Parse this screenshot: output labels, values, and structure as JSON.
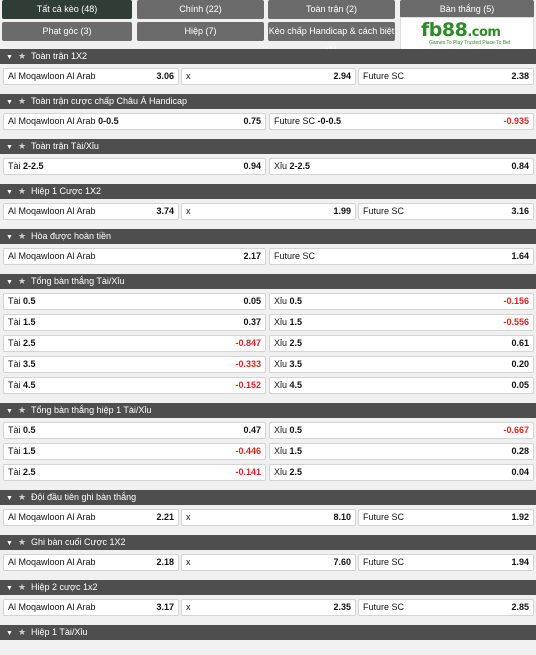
{
  "tabs": [
    {
      "label": "Tất cả kèo (48)"
    },
    {
      "label": "Chính (22)"
    },
    {
      "label": "Toàn trận (2)"
    },
    {
      "label": "Bàn thắng (5)"
    },
    {
      "label": "Phạt góc (3)"
    },
    {
      "label": "Hiệp (7)"
    },
    {
      "label": "Kèo chấp Handicap & cách biệt (1)"
    }
  ],
  "logo": {
    "brand": "fb88",
    "suffix": ".com",
    "tagline": "Games To Play  Trusted Place To Bet"
  },
  "icons": {
    "collapse": "triangle-down-icon",
    "favorite": "star-icon"
  },
  "colors": {
    "header_bg": "#4e4e4e",
    "tab_active": "#2f3d34",
    "tab": "#6b6b6b",
    "negative": "#e02020",
    "brand": "#2f8a2a"
  },
  "sections": [
    {
      "title": "Toàn trận 1X2",
      "layout": 3,
      "rows": [
        [
          {
            "label": "Al Moqawloon Al Arab",
            "line": "",
            "odd": "3.06"
          },
          {
            "label": "x",
            "line": "",
            "odd": "2.94"
          },
          {
            "label": "Future SC",
            "line": "",
            "odd": "2.38"
          }
        ]
      ]
    },
    {
      "title": "Toàn trận cược chấp Châu Á Handicap",
      "layout": 2,
      "rows": [
        [
          {
            "label": "Al Moqawloon Al Arab",
            "line": "0-0.5",
            "odd": "0.75"
          },
          {
            "label": "Future SC",
            "line": "-0-0.5",
            "odd": "-0.935"
          }
        ]
      ]
    },
    {
      "title": "Toàn trận Tài/Xỉu",
      "layout": 2,
      "rows": [
        [
          {
            "label": "Tài",
            "line": "2-2.5",
            "odd": "0.94"
          },
          {
            "label": "Xỉu",
            "line": "2-2.5",
            "odd": "0.84"
          }
        ]
      ]
    },
    {
      "title": "Hiệp 1 Cược 1X2",
      "layout": 3,
      "rows": [
        [
          {
            "label": "Al Moqawloon Al Arab",
            "line": "",
            "odd": "3.74"
          },
          {
            "label": "x",
            "line": "",
            "odd": "1.99"
          },
          {
            "label": "Future SC",
            "line": "",
            "odd": "3.16"
          }
        ]
      ]
    },
    {
      "title": "Hòa được hoàn tiền",
      "layout": 2,
      "rows": [
        [
          {
            "label": "Al Moqawloon Al Arab",
            "line": "",
            "odd": "2.17"
          },
          {
            "label": "Future SC",
            "line": "",
            "odd": "1.64"
          }
        ]
      ]
    },
    {
      "title": "Tổng bàn thắng Tài/Xỉu",
      "layout": 2,
      "rows": [
        [
          {
            "label": "Tài",
            "line": "0.5",
            "odd": "0.05"
          },
          {
            "label": "Xỉu",
            "line": "0.5",
            "odd": "-0.156"
          }
        ],
        [
          {
            "label": "Tài",
            "line": "1.5",
            "odd": "0.37"
          },
          {
            "label": "Xỉu",
            "line": "1.5",
            "odd": "-0.556"
          }
        ],
        [
          {
            "label": "Tài",
            "line": "2.5",
            "odd": "-0.847"
          },
          {
            "label": "Xỉu",
            "line": "2.5",
            "odd": "0.61"
          }
        ],
        [
          {
            "label": "Tài",
            "line": "3.5",
            "odd": "-0.333"
          },
          {
            "label": "Xỉu",
            "line": "3.5",
            "odd": "0.20"
          }
        ],
        [
          {
            "label": "Tài",
            "line": "4.5",
            "odd": "-0.152"
          },
          {
            "label": "Xỉu",
            "line": "4.5",
            "odd": "0.05"
          }
        ]
      ]
    },
    {
      "title": "Tổng bàn thắng hiệp 1 Tài/Xỉu",
      "layout": 2,
      "rows": [
        [
          {
            "label": "Tài",
            "line": "0.5",
            "odd": "0.47"
          },
          {
            "label": "Xỉu",
            "line": "0.5",
            "odd": "-0.667"
          }
        ],
        [
          {
            "label": "Tài",
            "line": "1.5",
            "odd": "-0.446"
          },
          {
            "label": "Xỉu",
            "line": "1.5",
            "odd": "0.28"
          }
        ],
        [
          {
            "label": "Tài",
            "line": "2.5",
            "odd": "-0.141"
          },
          {
            "label": "Xỉu",
            "line": "2.5",
            "odd": "0.04"
          }
        ]
      ]
    },
    {
      "title": "Đội đầu tiên ghi bàn thắng",
      "layout": 3,
      "rows": [
        [
          {
            "label": "Al Moqawloon Al Arab",
            "line": "",
            "odd": "2.21"
          },
          {
            "label": "x",
            "line": "",
            "odd": "8.10"
          },
          {
            "label": "Future SC",
            "line": "",
            "odd": "1.92"
          }
        ]
      ]
    },
    {
      "title": "Ghi bàn cuối Cược 1X2",
      "layout": 3,
      "rows": [
        [
          {
            "label": "Al Moqawloon Al Arab",
            "line": "",
            "odd": "2.18"
          },
          {
            "label": "x",
            "line": "",
            "odd": "7.60"
          },
          {
            "label": "Future SC",
            "line": "",
            "odd": "1.94"
          }
        ]
      ]
    },
    {
      "title": "Hiệp 2 cược 1x2",
      "layout": 3,
      "rows": [
        [
          {
            "label": "Al Moqawloon Al Arab",
            "line": "",
            "odd": "3.17"
          },
          {
            "label": "x",
            "line": "",
            "odd": "2.35"
          },
          {
            "label": "Future SC",
            "line": "",
            "odd": "2.85"
          }
        ]
      ]
    },
    {
      "title": "Hiệp 1 Tài/Xỉu",
      "layout": 2,
      "rows": []
    }
  ]
}
